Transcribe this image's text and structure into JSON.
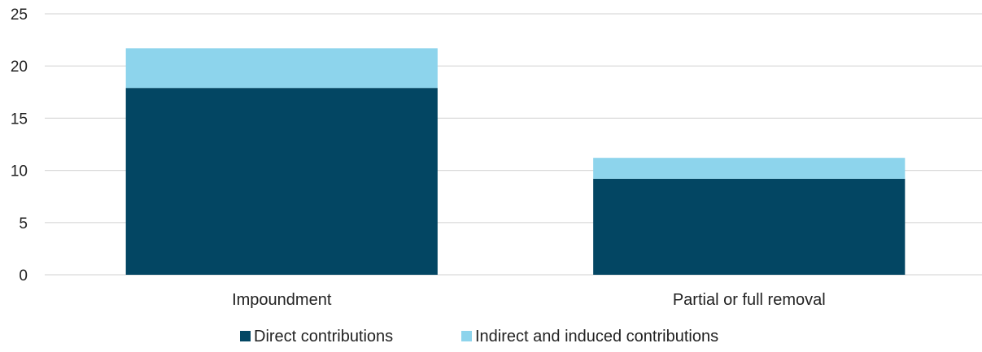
{
  "chart_data": {
    "type": "bar",
    "stacked": true,
    "categories": [
      "Impoundment",
      "Partial or full removal"
    ],
    "series": [
      {
        "name": "Direct contributions",
        "values": [
          17.9,
          9.2
        ],
        "color": "#034663"
      },
      {
        "name": "Indirect and induced contributions",
        "values": [
          3.8,
          2.0
        ],
        "color": "#8dd4ec"
      }
    ],
    "ylim": [
      0,
      25
    ],
    "yticks": [
      "0",
      "5",
      "10",
      "15",
      "20",
      "25"
    ],
    "grid": true,
    "legend_position": "bottom"
  }
}
